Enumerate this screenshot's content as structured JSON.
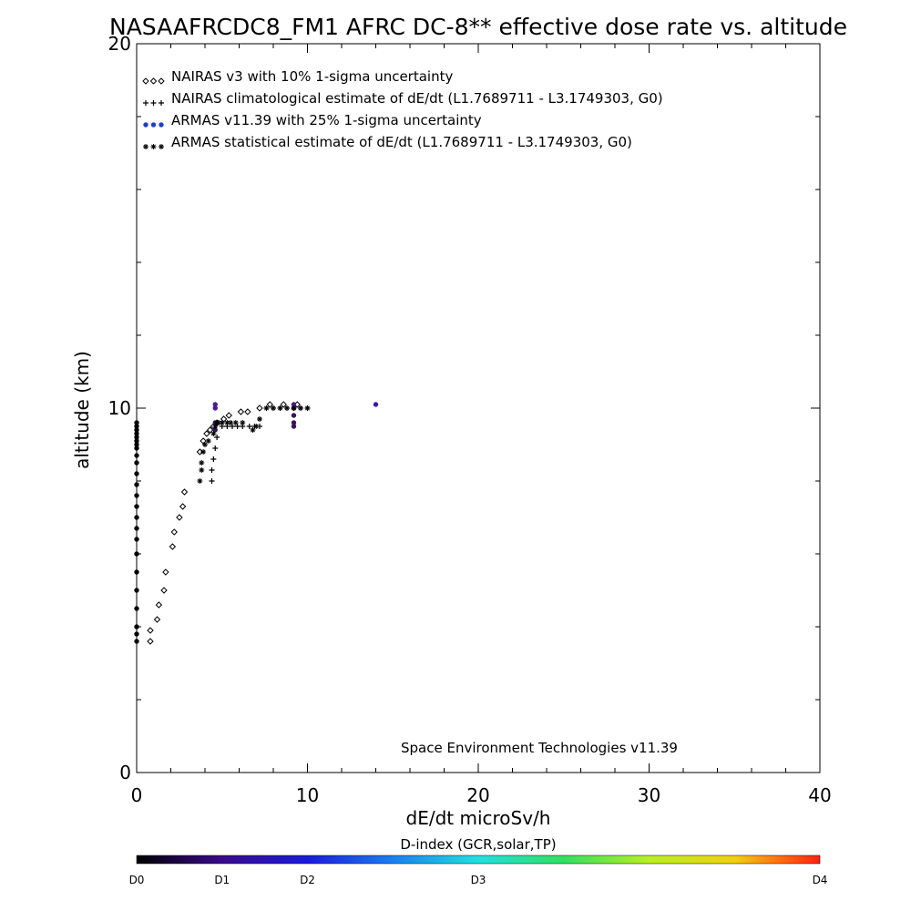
{
  "chart_data": {
    "type": "scatter",
    "title": "NASAAFRCDC8_FM1 AFRC DC-8** effective dose rate vs. altitude",
    "xlabel": "dE/dt microSv/h",
    "ylabel": "altitude (km)",
    "xlim": [
      0,
      40
    ],
    "ylim": [
      0,
      20
    ],
    "x_ticks": [
      0,
      10,
      20,
      30,
      40
    ],
    "x_tick_labels": [
      "0",
      "10",
      "20",
      "30",
      "40"
    ],
    "y_ticks": [
      0,
      10,
      20
    ],
    "y_tick_labels": [
      "0",
      "10",
      "20"
    ],
    "annotation": "Space Environment Technologies v11.39",
    "legend_position": "top-left",
    "legend": [
      {
        "marker": "diamond",
        "color": "#000000",
        "label": "NAIRAS v3 with 10% 1-sigma uncertainty"
      },
      {
        "marker": "plus",
        "color": "#000000",
        "label": "NAIRAS climatological estimate of dE/dt (L1.7689711 - L3.1749303, G0)"
      },
      {
        "marker": "dot",
        "color": "#1a3fd6",
        "label": "ARMAS v11.39 with 25% 1-sigma uncertainty"
      },
      {
        "marker": "asterisk",
        "color": "#000000",
        "label": "ARMAS statistical estimate of dE/dt (L1.7689711 - L3.1749303, G0)"
      }
    ],
    "series": [
      {
        "name": "NAIRAS v3 with 10% 1-sigma uncertainty",
        "marker": "diamond",
        "x": [
          0.8,
          0.8,
          1.2,
          1.3,
          1.6,
          1.7,
          2.1,
          2.2,
          2.5,
          2.7,
          2.8,
          3.7,
          3.9,
          4.1,
          4.3,
          4.5,
          4.7,
          5.1,
          5.4,
          6.1,
          6.5,
          7.2,
          7.8,
          8.6,
          9.4
        ],
        "y": [
          3.6,
          3.9,
          4.2,
          4.6,
          5.0,
          5.5,
          6.2,
          6.6,
          7.0,
          7.3,
          7.7,
          8.8,
          9.1,
          9.3,
          9.4,
          9.5,
          9.6,
          9.7,
          9.8,
          9.9,
          9.9,
          10.0,
          10.1,
          10.1,
          10.1
        ]
      },
      {
        "name": "NAIRAS climatological estimate of dE/dt (L1.7689711 - L3.1749303, G0)",
        "marker": "plus",
        "x": [
          4.4,
          4.4,
          4.5,
          4.6,
          4.7,
          5.0,
          5.3,
          5.6,
          5.9,
          6.2,
          6.6,
          6.9,
          7.2,
          7.6,
          8.0,
          8.4,
          8.8,
          9.2,
          9.6,
          10.0
        ],
        "y": [
          8.0,
          8.3,
          8.6,
          8.9,
          9.2,
          9.5,
          9.5,
          9.5,
          9.5,
          9.5,
          9.5,
          9.5,
          9.5,
          10.0,
          10.0,
          10.0,
          10.0,
          10.0,
          10.0,
          10.0
        ]
      },
      {
        "name": "ARMAS v11.39 with 25% 1-sigma uncertainty",
        "marker": "dot",
        "x": [
          0,
          0,
          0,
          0,
          0,
          0,
          0,
          0,
          0,
          0,
          0,
          0,
          0,
          0,
          0,
          0,
          0,
          0,
          0,
          0,
          0,
          0,
          0,
          0,
          4.6,
          4.6,
          4.6,
          4.6,
          9.2,
          9.2,
          9.2,
          9.2,
          9.2,
          14.0
        ],
        "y": [
          3.6,
          3.8,
          4.0,
          4.5,
          5.0,
          5.5,
          6.0,
          6.4,
          6.7,
          7.0,
          7.3,
          7.6,
          7.9,
          8.2,
          8.5,
          8.7,
          8.9,
          9.0,
          9.1,
          9.2,
          9.3,
          9.4,
          9.5,
          9.6,
          9.4,
          9.6,
          10.0,
          10.1,
          9.5,
          9.6,
          9.8,
          10.0,
          10.1,
          10.1
        ]
      },
      {
        "name": "ARMAS statistical estimate of dE/dt (L1.7689711 - L3.1749303, G0)",
        "marker": "asterisk",
        "x": [
          3.7,
          3.8,
          3.8,
          3.9,
          4.0,
          4.2,
          4.5,
          4.6,
          4.7,
          4.8,
          5.0,
          5.3,
          5.5,
          5.8,
          6.2,
          6.8,
          7.0,
          7.2,
          7.6,
          8.0,
          8.4,
          8.8,
          9.2,
          9.6,
          10.0
        ],
        "y": [
          8.0,
          8.3,
          8.5,
          8.8,
          9.0,
          9.1,
          9.3,
          9.5,
          9.6,
          9.6,
          9.6,
          9.6,
          9.6,
          9.6,
          9.6,
          9.4,
          9.5,
          9.7,
          10.0,
          10.0,
          10.0,
          10.0,
          10.0,
          10.0,
          10.0
        ]
      }
    ],
    "colorbar": {
      "label": "D-index (GCR,solar,TP)",
      "ticks": [
        {
          "value": 0,
          "label": "D0"
        },
        {
          "value": 1,
          "label": "D1"
        },
        {
          "value": 2,
          "label": "D2"
        },
        {
          "value": 4,
          "label": "D3"
        },
        {
          "value": 8,
          "label": "D4"
        }
      ],
      "range": [
        0,
        8
      ],
      "colors": [
        "#000000",
        "#3a0a8c",
        "#1a1adc",
        "#1a7ff0",
        "#20e0e0",
        "#30e060",
        "#b8f020",
        "#f0d010",
        "#ff7010",
        "#ff2010"
      ]
    }
  }
}
